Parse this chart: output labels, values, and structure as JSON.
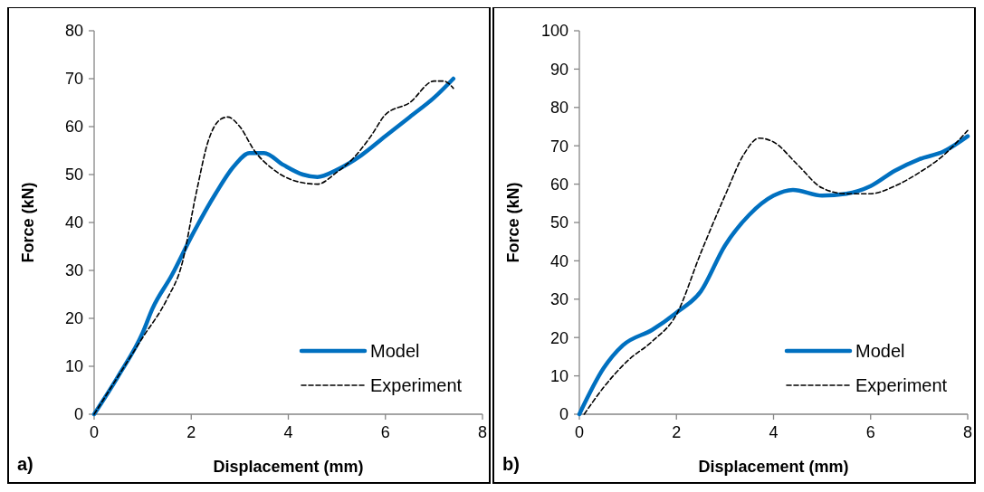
{
  "chart_data": [
    {
      "type": "line",
      "xlabel": "Displacement (mm)",
      "ylabel": "Force (kN)",
      "xlim": [
        0,
        8
      ],
      "xticks": [
        0,
        2,
        4,
        6,
        8
      ],
      "ylim": [
        0,
        80
      ],
      "yticks": [
        0,
        10,
        20,
        30,
        40,
        50,
        60,
        70,
        80
      ],
      "legend": "bottom right",
      "annotations": [
        "a)"
      ],
      "series": [
        {
          "name": "Model",
          "color": "#0070c0",
          "line_style": "solid",
          "x": [
            0,
            0.5,
            1,
            1.2,
            1.6,
            2,
            2.5,
            2.9,
            3.2,
            3.5,
            3.9,
            4.3,
            4.6,
            5,
            5.5,
            6,
            6.5,
            7,
            7.4
          ],
          "values": [
            0,
            8,
            17,
            22,
            29,
            37,
            46,
            52,
            54.5,
            54.5,
            52,
            50,
            49.5,
            51,
            54,
            58,
            62,
            66,
            70
          ]
        },
        {
          "name": "Experiment",
          "color": "#000000",
          "line_style": "dashed",
          "x": [
            0,
            0.5,
            1,
            1.5,
            1.8,
            2.1,
            2.35,
            2.6,
            2.75,
            3,
            3.3,
            3.7,
            4.2,
            4.6,
            5,
            5.3,
            5.7,
            6,
            6.5,
            7,
            7.2,
            7.4
          ],
          "values": [
            0,
            8,
            16,
            24,
            31,
            46,
            57,
            61.5,
            62,
            60,
            55,
            51,
            48.5,
            48,
            50.5,
            53,
            58,
            62.5,
            65,
            69.5,
            69.5,
            68
          ]
        }
      ]
    },
    {
      "type": "line",
      "xlabel": "Displacement (mm)",
      "ylabel": "Force (kN)",
      "xlim": [
        0,
        8
      ],
      "xticks": [
        0,
        2,
        4,
        6,
        8
      ],
      "ylim": [
        0,
        100
      ],
      "yticks": [
        0,
        10,
        20,
        30,
        40,
        50,
        60,
        70,
        80,
        90,
        100
      ],
      "legend": "bottom right",
      "annotations": [
        "b)"
      ],
      "series": [
        {
          "name": "Model",
          "color": "#0070c0",
          "line_style": "solid",
          "x": [
            0,
            0.5,
            0.9,
            1.5,
            2,
            2.5,
            3,
            3.5,
            4,
            4.4,
            5,
            5.5,
            6,
            6.5,
            7,
            7.5,
            8
          ],
          "values": [
            0,
            12,
            18,
            22,
            26.5,
            32,
            44,
            52,
            57,
            58.5,
            57,
            57.5,
            59.5,
            63.5,
            66.5,
            68.5,
            72.5
          ]
        },
        {
          "name": "Experiment",
          "color": "#000000",
          "line_style": "dashed",
          "x": [
            0.1,
            0.5,
            1,
            1.5,
            2,
            2.5,
            3,
            3.4,
            3.7,
            4,
            4.5,
            5,
            5.5,
            6,
            6.5,
            7,
            7.5,
            8
          ],
          "values": [
            0,
            7,
            14,
            19,
            26,
            42,
            57,
            68,
            72,
            71,
            65,
            59,
            57.5,
            57.5,
            59.5,
            63,
            67.5,
            74
          ]
        }
      ]
    }
  ]
}
